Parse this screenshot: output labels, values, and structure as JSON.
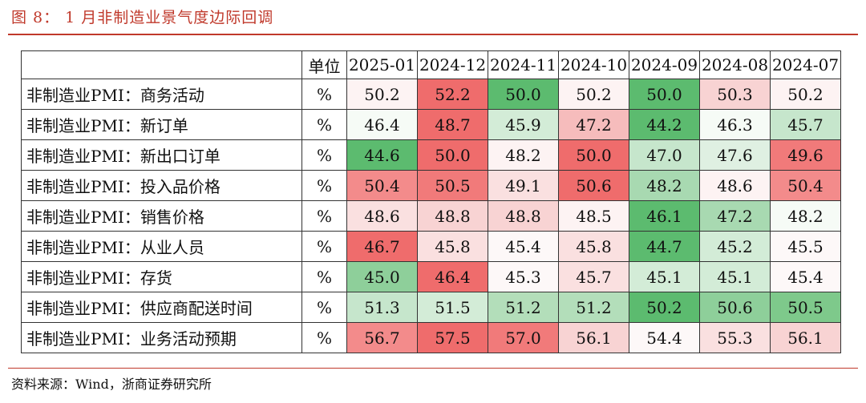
{
  "figure": {
    "title": "图 8：  1 月非制造业景气度边际回调",
    "source": "资料来源：Wind，浙商证券研究所"
  },
  "table": {
    "unit_header": "单位",
    "columns": [
      "2025-01",
      "2024-12",
      "2024-11",
      "2024-10",
      "2024-09",
      "2024-08",
      "2024-07"
    ],
    "rows": [
      {
        "label": "非制造业PMI：商务活动",
        "unit": "%",
        "values": [
          "50.2",
          "52.2",
          "50.0",
          "50.2",
          "50.0",
          "50.3",
          "50.2"
        ],
        "colors": [
          "#fdf3f3",
          "#ef6c6c",
          "#5cbb6f",
          "#fdf3f3",
          "#5cbb6f",
          "#f8d3d3",
          "#fdf3f3"
        ]
      },
      {
        "label": "非制造业PMI：新订单",
        "unit": "%",
        "values": [
          "46.4",
          "48.7",
          "45.9",
          "47.2",
          "44.2",
          "46.3",
          "45.7"
        ],
        "colors": [
          "#f6fbf6",
          "#ef6c6c",
          "#d3ecd7",
          "#f6bcbc",
          "#5cbb6f",
          "#f6fbf6",
          "#c6e6cc"
        ]
      },
      {
        "label": "非制造业PMI：新出口订单",
        "unit": "%",
        "values": [
          "44.6",
          "50.0",
          "48.2",
          "50.0",
          "47.0",
          "47.6",
          "49.6"
        ],
        "colors": [
          "#5cbb6f",
          "#ef6c6c",
          "#fdf3f3",
          "#ef6c6c",
          "#c6e6cc",
          "#dff0e2",
          "#f17a7a"
        ]
      },
      {
        "label": "非制造业PMI：投入品价格",
        "unit": "%",
        "values": [
          "50.4",
          "50.5",
          "49.1",
          "50.6",
          "48.2",
          "48.6",
          "50.4"
        ],
        "colors": [
          "#f38b8b",
          "#f17a7a",
          "#fae0e0",
          "#ef6c6c",
          "#a8d9b1",
          "#fdf3f3",
          "#f38b8b"
        ]
      },
      {
        "label": "非制造业PMI：销售价格",
        "unit": "%",
        "values": [
          "48.6",
          "48.8",
          "48.8",
          "48.5",
          "46.1",
          "47.2",
          "48.2"
        ],
        "colors": [
          "#fae0e0",
          "#f8d3d3",
          "#f8d3d3",
          "#fdf3f3",
          "#5cbb6f",
          "#a8d9b1",
          "#f6fbf6"
        ]
      },
      {
        "label": "非制造业PMI：从业人员",
        "unit": "%",
        "values": [
          "46.7",
          "45.8",
          "45.4",
          "45.8",
          "44.7",
          "45.2",
          "45.5"
        ],
        "colors": [
          "#ef6c6c",
          "#fae0e0",
          "#fdf8f8",
          "#fae0e0",
          "#5cbb6f",
          "#d3ecd7",
          "#fdf8f8"
        ]
      },
      {
        "label": "非制造业PMI：存货",
        "unit": "%",
        "values": [
          "45.0",
          "46.4",
          "45.3",
          "45.7",
          "45.1",
          "45.1",
          "45.4"
        ],
        "colors": [
          "#8ecf9a",
          "#ef6c6c",
          "#fdf8f8",
          "#fae0e0",
          "#d3ecd7",
          "#d3ecd7",
          "#fdf8f8"
        ]
      },
      {
        "label": "非制造业PMI：供应商配送时间",
        "unit": "%",
        "values": [
          "51.3",
          "51.5",
          "51.2",
          "51.2",
          "50.2",
          "50.6",
          "50.5"
        ],
        "colors": [
          "#c6e6cc",
          "#d3ecd7",
          "#b3deba",
          "#b3deba",
          "#5cbb6f",
          "#8ecf9a",
          "#7ec98b"
        ]
      },
      {
        "label": "非制造业PMI：业务活动预期",
        "unit": "%",
        "values": [
          "56.7",
          "57.5",
          "57.0",
          "56.1",
          "54.4",
          "55.3",
          "56.1"
        ],
        "colors": [
          "#f38b8b",
          "#ef6c6c",
          "#f17a7a",
          "#f8d3d3",
          "#fdf8f8",
          "#fae0e0",
          "#f8d3d3"
        ]
      }
    ]
  }
}
